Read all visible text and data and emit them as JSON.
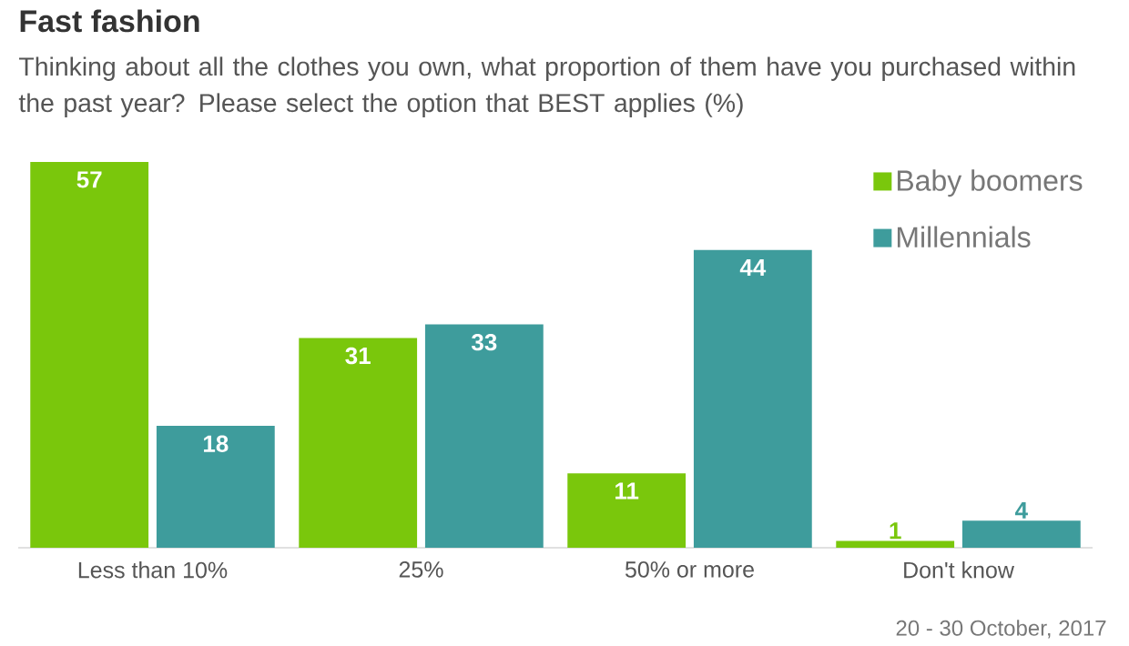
{
  "chart_data": {
    "type": "bar",
    "title": "Fast fashion",
    "subtitle": "Thinking about all the clothes you own, what proportion of them have you purchased within the past year? Please select the option that BEST applies (%)",
    "categories": [
      "Less than 10%",
      "25%",
      "50% or more",
      "Don't know"
    ],
    "series": [
      {
        "name": "Baby boomers",
        "color": "#7ac70c",
        "values": [
          57,
          31,
          11,
          1
        ]
      },
      {
        "name": "Millennials",
        "color": "#3e9c9c",
        "values": [
          18,
          33,
          44,
          4
        ]
      }
    ],
    "data_labels": true,
    "legend": "top right",
    "annotations": [
      "20 - 30 October, 2017"
    ]
  }
}
